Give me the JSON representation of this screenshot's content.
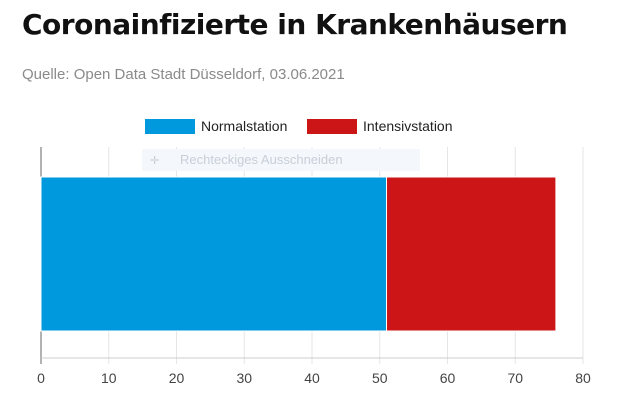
{
  "header": {
    "title": "Coronainfizierte in Krankenhäusern",
    "subtitle": "Quelle: Open Data Stadt Düsseldorf, 03.06.2021"
  },
  "ghost_control": {
    "icon": "pointer-icon",
    "label": "Rechteckiges Ausschneiden"
  },
  "chart_data": {
    "type": "bar",
    "orientation": "horizontal",
    "stacked": true,
    "categories": [
      ""
    ],
    "series": [
      {
        "name": "Normalstation",
        "values": [
          51
        ],
        "color": "#0099dd"
      },
      {
        "name": "Intensivstation",
        "values": [
          25
        ],
        "color": "#cc1517"
      }
    ],
    "xlim": [
      0,
      80
    ],
    "xticks": [
      0,
      10,
      20,
      30,
      40,
      50,
      60,
      70,
      80
    ],
    "grid": "vertical",
    "legend": "top-center",
    "xlabel": "",
    "ylabel": ""
  }
}
